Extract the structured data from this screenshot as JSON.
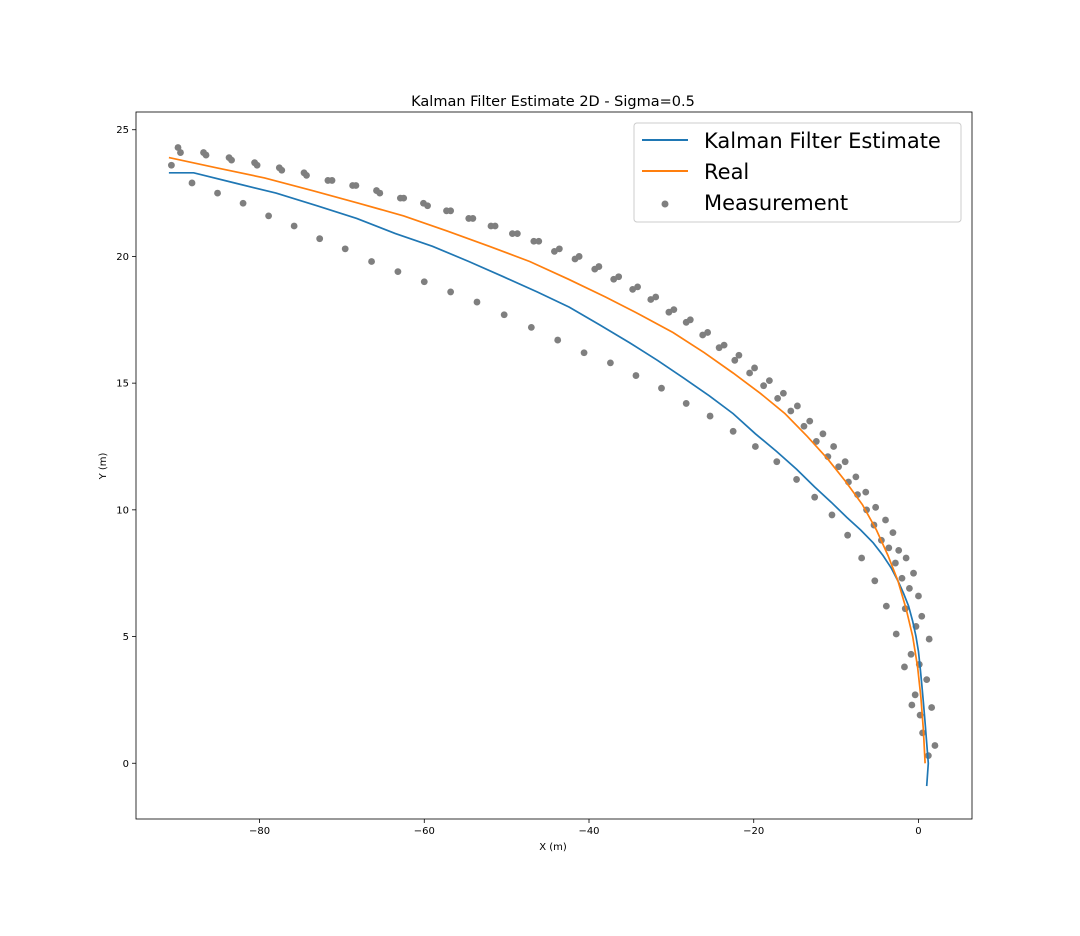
{
  "chart_data": {
    "type": "line",
    "title": "Kalman Filter Estimate 2D - Sigma=0.5",
    "xlabel": "X (m)",
    "ylabel": "Y (m)",
    "xlim": [
      -95,
      6.5
    ],
    "ylim": [
      -2.2,
      25.7
    ],
    "xticks": [
      -80,
      -60,
      -40,
      -20,
      0
    ],
    "yticks": [
      0,
      5,
      10,
      15,
      20,
      25
    ],
    "xtick_labels": [
      "−80",
      "−60",
      "−40",
      "−20",
      "0"
    ],
    "ytick_labels": [
      "0",
      "5",
      "10",
      "15",
      "20",
      "25"
    ],
    "grid": false,
    "legend": {
      "position": "top-right",
      "entries": [
        "Kalman Filter Estimate",
        "Real",
        "Measurement"
      ]
    },
    "colors": {
      "estimate": "#1f77b4",
      "real": "#ff7f0e",
      "measurement": "#7f7f7f"
    },
    "series": [
      {
        "name": "Kalman Filter Estimate",
        "kind": "line",
        "x": [
          1.0,
          1.2,
          1.0,
          0.8,
          0.6,
          0.4,
          0.2,
          0.0,
          -0.3,
          -0.7,
          -1.2,
          -1.8,
          -2.5,
          -3.3,
          -4.3,
          -5.5,
          -7.0,
          -8.7,
          -10.6,
          -12.6,
          -14.8,
          -17.2,
          -19.8,
          -22.5,
          -25.4,
          -28.5,
          -31.7,
          -35.1,
          -38.7,
          -42.4,
          -46.3,
          -50.4,
          -54.6,
          -59.0,
          -63.5,
          -68.2,
          -73.0,
          -78.0,
          -83.0,
          -88.0,
          -91.0
        ],
        "y": [
          -0.9,
          0.0,
          0.8,
          1.6,
          2.4,
          3.1,
          3.8,
          4.4,
          5.0,
          5.6,
          6.2,
          6.7,
          7.2,
          7.7,
          8.2,
          8.7,
          9.2,
          9.7,
          10.3,
          10.9,
          11.6,
          12.3,
          13.0,
          13.8,
          14.5,
          15.2,
          15.9,
          16.6,
          17.3,
          18.0,
          18.6,
          19.2,
          19.8,
          20.4,
          20.9,
          21.5,
          22.0,
          22.5,
          22.9,
          23.3,
          23.3
        ]
      },
      {
        "name": "Real",
        "kind": "line",
        "x": [
          0.8,
          0.6,
          0.3,
          -0.1,
          -0.7,
          -1.5,
          -2.5,
          -3.7,
          -5.1,
          -6.8,
          -8.8,
          -11.0,
          -13.5,
          -16.2,
          -19.2,
          -22.5,
          -26.0,
          -29.8,
          -33.8,
          -38.0,
          -42.5,
          -47.2,
          -52.1,
          -57.2,
          -62.5,
          -68.0,
          -73.6,
          -79.4,
          -85.3,
          -91.0
        ],
        "y": [
          0.0,
          1.3,
          2.6,
          3.8,
          5.0,
          6.1,
          7.2,
          8.2,
          9.2,
          10.2,
          11.1,
          12.0,
          12.9,
          13.8,
          14.6,
          15.4,
          16.2,
          17.0,
          17.7,
          18.4,
          19.1,
          19.8,
          20.4,
          21.0,
          21.6,
          22.1,
          22.6,
          23.1,
          23.5,
          23.9
        ]
      },
      {
        "name": "Measurement",
        "kind": "scatter",
        "x": [
          2.0,
          1.2,
          0.5,
          1.6,
          0.2,
          -0.4,
          1.0,
          0.1,
          -0.9,
          1.3,
          -0.3,
          0.4,
          -1.6,
          0.0,
          -1.1,
          -2.0,
          -0.6,
          -2.8,
          -1.5,
          -3.6,
          -2.4,
          -4.5,
          -3.1,
          -5.4,
          -4.0,
          -6.3,
          -5.2,
          -7.4,
          -6.4,
          -8.5,
          -7.6,
          -9.7,
          -8.9,
          -11.0,
          -10.3,
          -12.4,
          -11.6,
          -13.9,
          -13.2,
          -15.5,
          -14.7,
          -17.1,
          -16.4,
          -18.8,
          -18.1,
          -20.5,
          -19.9,
          -22.3,
          -21.8,
          -24.2,
          -23.6,
          -26.2,
          -25.6,
          -28.2,
          -27.7,
          -30.3,
          -29.7,
          -32.5,
          -31.9,
          -34.7,
          -34.1,
          -37.0,
          -36.4,
          -39.3,
          -38.8,
          -41.7,
          -41.2,
          -44.2,
          -43.6,
          -46.7,
          -46.1,
          -49.3,
          -48.7,
          -51.9,
          -51.4,
          -54.6,
          -54.1,
          -57.3,
          -56.8,
          -60.1,
          -59.6,
          -62.9,
          -62.5,
          -65.8,
          -65.4,
          -68.7,
          -68.3,
          -71.7,
          -71.2,
          -74.6,
          -74.3,
          -77.6,
          -77.3,
          -80.6,
          -80.3,
          -83.7,
          -83.4,
          -86.8,
          -86.5,
          -89.9,
          -89.6,
          -90.7,
          -88.2,
          -85.1,
          -82.0,
          -78.9,
          -75.8,
          -72.7,
          -69.6,
          -66.4,
          -63.2,
          -60.0,
          -56.8,
          -53.6,
          -50.3,
          -47.0,
          -43.8,
          -40.6,
          -37.4,
          -34.3,
          -31.2,
          -28.2,
          -25.3,
          -22.5,
          -19.8,
          -17.2,
          -14.8,
          -12.6,
          -10.5,
          -8.6,
          -6.9,
          -5.3,
          -3.9,
          -2.7,
          -1.7,
          -0.8
        ],
        "y": [
          0.7,
          0.3,
          1.2,
          2.2,
          1.9,
          2.7,
          3.3,
          3.9,
          4.3,
          4.9,
          5.4,
          5.8,
          6.1,
          6.6,
          6.9,
          7.3,
          7.5,
          7.9,
          8.1,
          8.5,
          8.4,
          8.8,
          9.1,
          9.4,
          9.6,
          10.0,
          10.1,
          10.6,
          10.7,
          11.1,
          11.3,
          11.7,
          11.9,
          12.1,
          12.5,
          12.7,
          13.0,
          13.3,
          13.5,
          13.9,
          14.1,
          14.4,
          14.6,
          14.9,
          15.1,
          15.4,
          15.6,
          15.9,
          16.1,
          16.4,
          16.5,
          16.9,
          17.0,
          17.4,
          17.5,
          17.8,
          17.9,
          18.3,
          18.4,
          18.7,
          18.8,
          19.1,
          19.2,
          19.5,
          19.6,
          19.9,
          20.0,
          20.2,
          20.3,
          20.6,
          20.6,
          20.9,
          20.9,
          21.2,
          21.2,
          21.5,
          21.5,
          21.8,
          21.8,
          22.1,
          22.0,
          22.3,
          22.3,
          22.6,
          22.5,
          22.8,
          22.8,
          23.0,
          23.0,
          23.3,
          23.2,
          23.5,
          23.4,
          23.7,
          23.6,
          23.9,
          23.8,
          24.1,
          24.0,
          24.3,
          24.1,
          23.6,
          22.9,
          22.5,
          22.1,
          21.6,
          21.2,
          20.7,
          20.3,
          19.8,
          19.4,
          19.0,
          18.6,
          18.2,
          17.7,
          17.2,
          16.7,
          16.2,
          15.8,
          15.3,
          14.8,
          14.2,
          13.7,
          13.1,
          12.5,
          11.9,
          11.2,
          10.5,
          9.8,
          9.0,
          8.1,
          7.2,
          6.2,
          5.1,
          3.8,
          2.3
        ]
      }
    ]
  }
}
